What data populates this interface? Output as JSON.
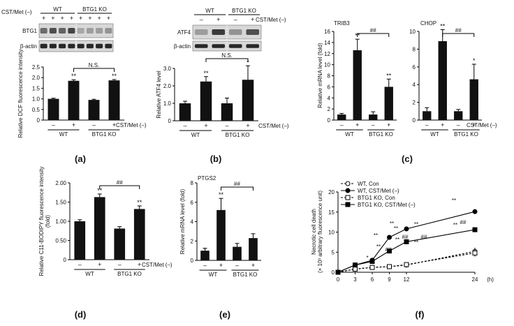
{
  "chart_data": [
    {
      "panel": "(a)",
      "type": "bar",
      "blot_conditions": {
        "groups": [
          "WT",
          "BTG1 KO"
        ],
        "treatment": "CST/Met (–)",
        "signs": [
          "+",
          "+",
          "+",
          "+",
          "+",
          "+",
          "+",
          "+"
        ]
      },
      "blot_labels": [
        "BTG1",
        "β-actin"
      ],
      "ylabel": "Relative DCF fluorescence intensity",
      "ylim": [
        0,
        2.5
      ],
      "yticks": [
        "0",
        "0.5",
        "1.0",
        "1.5",
        "2.0",
        "2.5"
      ],
      "categories": [
        "WT –",
        "WT +",
        "BTG1 KO –",
        "BTG1 KO +"
      ],
      "values": [
        1.0,
        1.85,
        0.95,
        1.87
      ],
      "errors": [
        0.03,
        0.05,
        0.03,
        0.04
      ],
      "sig": [
        "",
        "**",
        "",
        "**"
      ],
      "brackets": [
        {
          "from": 1,
          "to": 3,
          "label": "N.S."
        }
      ],
      "signs": [
        "–",
        "+",
        "–",
        "+"
      ],
      "groups": [
        "WT",
        "BTG1 KO"
      ],
      "treatment": "CST/Met (–)"
    },
    {
      "panel": "(b)",
      "type": "bar",
      "blot_conditions": {
        "groups": [
          "WT",
          "BTG1 KO"
        ],
        "treatment": "CST/Met (–)",
        "signs": [
          "–",
          "+",
          "–",
          "+"
        ]
      },
      "blot_labels": [
        "ATF4",
        "β-actin"
      ],
      "ylabel": "Relative ATF4 level",
      "ylim": [
        0,
        3.0
      ],
      "yticks": [
        "0",
        "1.0",
        "2.0",
        "3.0"
      ],
      "categories": [
        "WT –",
        "WT +",
        "BTG1 KO –",
        "BTG1 KO +"
      ],
      "values": [
        1.0,
        2.25,
        1.0,
        2.35
      ],
      "errors": [
        0.12,
        0.28,
        0.3,
        0.8
      ],
      "sig": [
        "",
        "**",
        "",
        "*"
      ],
      "brackets": [
        {
          "from": 1,
          "to": 3,
          "label": "N.S."
        }
      ],
      "signs": [
        "–",
        "+",
        "–",
        "+"
      ],
      "groups": [
        "WT",
        "BTG1 KO"
      ],
      "treatment": "CST/Met (–)"
    },
    {
      "panel": "(c)",
      "type": "bar",
      "ylabel": "Relative mRNA level (fold)",
      "subplots": [
        {
          "title": "TRIB3",
          "ylim": [
            0,
            16
          ],
          "yticks": [
            "0",
            "2",
            "4",
            "6",
            "8",
            "10",
            "12",
            "14",
            "16"
          ],
          "values": [
            1.0,
            12.6,
            1.0,
            6.0
          ],
          "errors": [
            0.2,
            2.0,
            0.5,
            1.4
          ],
          "sig": [
            "",
            "**",
            "",
            "**"
          ],
          "brackets": [
            {
              "from": 1,
              "to": 3,
              "label": "##"
            }
          ]
        },
        {
          "title": "CHOP",
          "ylim": [
            0,
            10
          ],
          "yticks": [
            "0",
            "2",
            "4",
            "6",
            "8",
            "10"
          ],
          "values": [
            1.0,
            8.9,
            1.0,
            4.6
          ],
          "errors": [
            0.4,
            1.3,
            0.2,
            1.7
          ],
          "sig": [
            "",
            "**",
            "",
            "*"
          ],
          "brackets": [
            {
              "from": 1,
              "to": 3,
              "label": "##"
            }
          ]
        }
      ],
      "signs": [
        "–",
        "+",
        "–",
        "+"
      ],
      "groups": [
        "WT",
        "BTG1 KO"
      ],
      "treatment": "CST/Met (–)"
    },
    {
      "panel": "(d)",
      "type": "bar",
      "ylabel": "Relative C11-BODIPY fluorescence intensity (fold)",
      "ylim": [
        0,
        2.0
      ],
      "yticks": [
        "0",
        "0.50",
        "1.00",
        "1.50",
        "2.00"
      ],
      "categories": [
        "WT –",
        "WT +",
        "BTG1 KO –",
        "BTG1 KO +"
      ],
      "values": [
        1.0,
        1.63,
        0.81,
        1.32
      ],
      "errors": [
        0.04,
        0.08,
        0.05,
        0.08
      ],
      "sig": [
        "",
        "**",
        "",
        "**"
      ],
      "brackets": [
        {
          "from": 1,
          "to": 3,
          "label": "##"
        }
      ],
      "signs": [
        "–",
        "+",
        "–",
        "+"
      ],
      "groups": [
        "WT",
        "BTG1 KO"
      ],
      "treatment": "CST/Met (–)"
    },
    {
      "panel": "(e)",
      "type": "bar",
      "title": "PTGS2",
      "ylabel": "Relative mRNA level (fold)",
      "ylim": [
        0,
        8
      ],
      "yticks": [
        "0",
        "2",
        "4",
        "6",
        "8"
      ],
      "categories": [
        "WT –",
        "WT +",
        "BTG1 KO –",
        "BTG1 KO +"
      ],
      "values": [
        1.0,
        5.2,
        1.4,
        2.3
      ],
      "errors": [
        0.25,
        1.2,
        0.35,
        0.45
      ],
      "sig": [
        "",
        "**",
        "",
        ""
      ],
      "brackets": [
        {
          "from": 1,
          "to": 3,
          "label": "##"
        }
      ],
      "signs": [
        "–",
        "+",
        "–",
        "+"
      ],
      "groups": [
        "WT",
        "BTG1 KO"
      ],
      "treatment": "CST/Met (–)"
    },
    {
      "panel": "(f)",
      "type": "line",
      "ylabel": "Necrotic cell death (× 10³ arbitrary fluorescence unit)",
      "xunit": "(h)",
      "x": [
        0,
        3,
        6,
        9,
        12,
        24
      ],
      "xticks": [
        "0",
        "3",
        "6",
        "9",
        "12",
        "24"
      ],
      "ylim": [
        0,
        20
      ],
      "yticks": [
        "0",
        "5",
        "10",
        "15",
        "20"
      ],
      "series": [
        {
          "name": "WT, Con",
          "values": [
            0,
            0.8,
            1.2,
            1.4,
            1.8,
            5.2
          ],
          "errors": [
            0.2,
            0.3,
            0.3,
            0.3,
            0.4,
            0.9
          ],
          "style": "dashed",
          "marker": "circle-open"
        },
        {
          "name": "WT, CST/Met (–)",
          "values": [
            0,
            1.8,
            3.0,
            8.7,
            10.8,
            15.1
          ],
          "errors": [
            0.2,
            0.3,
            0.3,
            0.3,
            0.3,
            0.3
          ],
          "style": "solid",
          "marker": "circle"
        },
        {
          "name": "BTG1 KO, Con",
          "values": [
            0,
            0.8,
            1.2,
            1.4,
            1.9,
            4.8
          ],
          "errors": [
            0.2,
            0.3,
            0.3,
            0.3,
            0.4,
            0.9
          ],
          "style": "dashed",
          "marker": "square-open"
        },
        {
          "name": "BTG1 KO, CST/Met (–)",
          "values": [
            0,
            1.8,
            2.7,
            5.3,
            7.6,
            10.6
          ],
          "errors": [
            0.2,
            0.3,
            0.3,
            0.3,
            0.3,
            0.5
          ],
          "style": "solid",
          "marker": "square"
        }
      ],
      "annotations": [
        "*",
        "**",
        "**",
        "##",
        "**",
        "**",
        "##",
        "**",
        "**",
        "##",
        "**",
        "**",
        "##",
        "**"
      ]
    }
  ]
}
